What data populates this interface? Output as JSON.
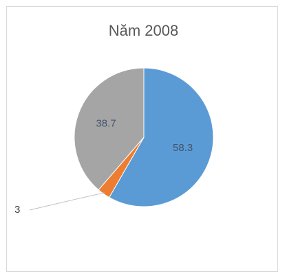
{
  "chart_data": {
    "type": "pie",
    "title": "Năm 2008",
    "slices": [
      {
        "label": "",
        "value": 58.3,
        "display": "58.3",
        "color": "#5b9bd5"
      },
      {
        "label": "",
        "value": 3,
        "display": "3",
        "color": "#ed7d31"
      },
      {
        "label": "",
        "value": 38.7,
        "display": "38.7",
        "color": "#a5a5a5"
      }
    ],
    "start_angle_deg": 0,
    "direction": "clockwise",
    "legend": "none"
  }
}
